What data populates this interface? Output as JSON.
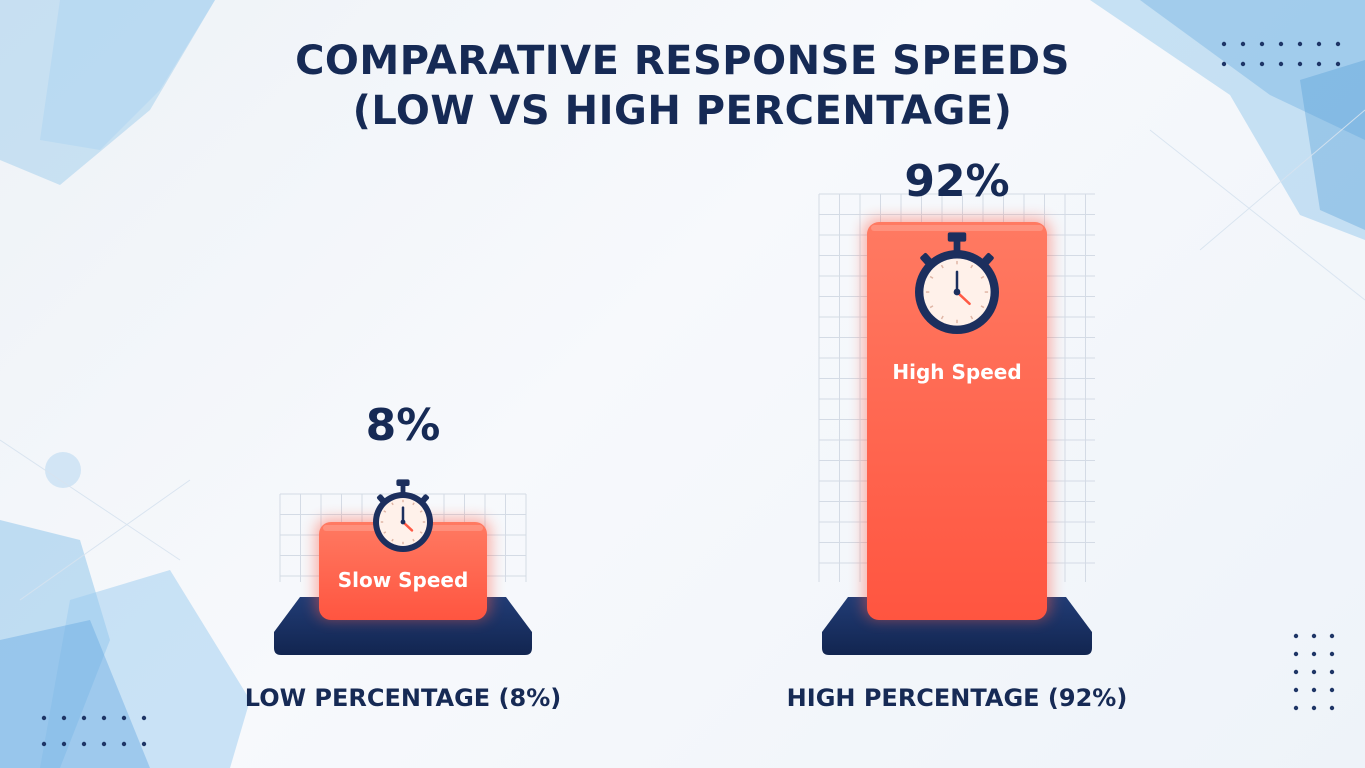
{
  "title_line1": "COMPARATIVE RESPONSE SPEEDS",
  "title_line2": "(LOW VS HIGH PERCENTAGE)",
  "chart_data": {
    "type": "bar",
    "categories": [
      "LOW PERCENTAGE (8%)",
      "HIGH PERCENTAGE (92%)"
    ],
    "values": [
      8,
      92
    ],
    "value_labels": [
      "8%",
      "92%"
    ],
    "bar_labels": [
      "Slow Speed",
      "High Speed"
    ],
    "ylim": [
      0,
      100
    ],
    "grid": false,
    "bar_icon": "stopwatch-icon",
    "colors": {
      "bar": "#ff5a45",
      "bar_light": "#ff7d65",
      "base": "#162a55",
      "text": "#162a55",
      "accent": "#6cb2e6"
    }
  }
}
